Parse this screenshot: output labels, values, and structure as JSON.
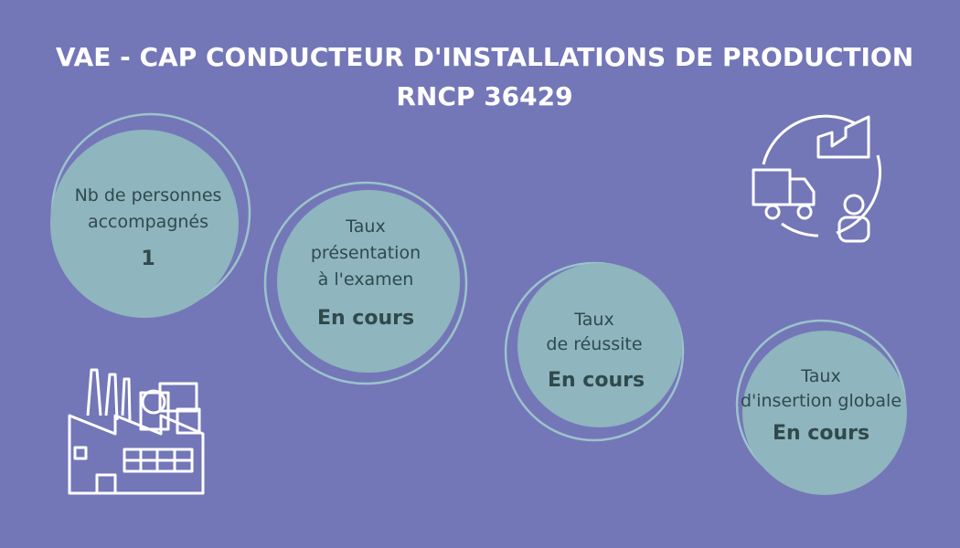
{
  "header": {
    "title": "VAE - CAP CONDUCTEUR D'INSTALLATIONS DE PRODUCTION",
    "subtitle": "RNCP 36429"
  },
  "stats": [
    {
      "label": [
        "Nb de personnes",
        "accompagnés"
      ],
      "value": "1"
    },
    {
      "label": [
        "Taux",
        "présentation",
        "à l'examen"
      ],
      "value": "En cours"
    },
    {
      "label": [
        "Taux",
        "de réussite"
      ],
      "value": "En cours"
    },
    {
      "label": [
        "Taux",
        "d'insertion globale"
      ],
      "value": "En cours"
    }
  ]
}
